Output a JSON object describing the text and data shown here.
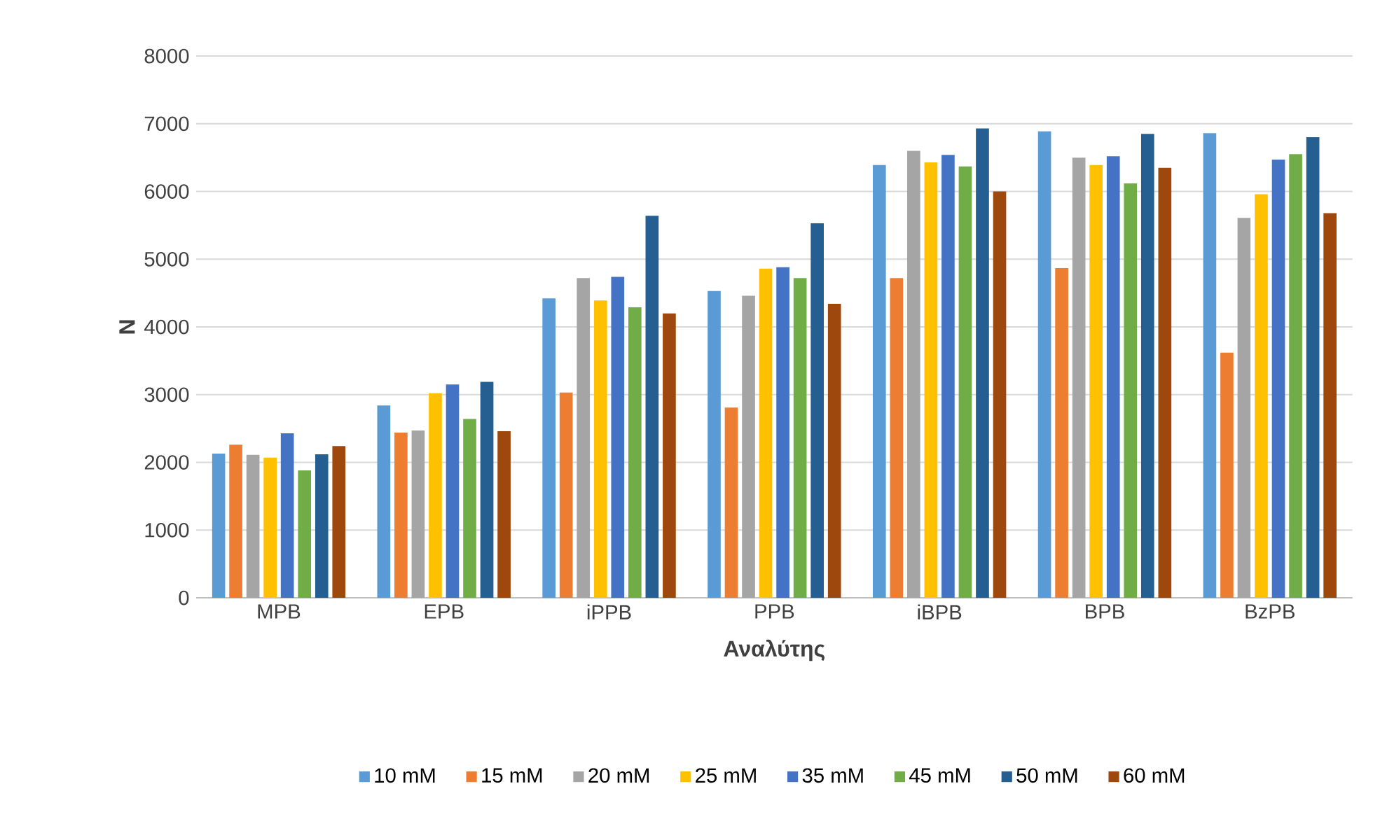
{
  "chart_data": {
    "type": "bar",
    "xlabel": "Αναλύτης",
    "ylabel": "N",
    "categories": [
      "MPB",
      "EPB",
      "iPPB",
      "PPB",
      "iBPB",
      "BPB",
      "BzPB"
    ],
    "series": [
      {
        "name": "10 mM",
        "color": "#5b9bd5",
        "values": [
          2130,
          2840,
          4420,
          4530,
          6390,
          6890,
          6860
        ]
      },
      {
        "name": "15 mM",
        "color": "#ed7d31",
        "values": [
          2260,
          2440,
          3030,
          2810,
          4720,
          4870,
          3620
        ]
      },
      {
        "name": "20 mM",
        "color": "#a5a5a5",
        "values": [
          2110,
          2470,
          4720,
          4460,
          6600,
          6500,
          5610
        ]
      },
      {
        "name": "25 mM",
        "color": "#ffc000",
        "values": [
          2070,
          3020,
          4390,
          4860,
          6430,
          6390,
          5960
        ]
      },
      {
        "name": "35 mM",
        "color": "#4472c4",
        "values": [
          2430,
          3150,
          4740,
          4880,
          6540,
          6520,
          6470
        ]
      },
      {
        "name": "45 mM",
        "color": "#70ad47",
        "values": [
          1880,
          2640,
          4290,
          4720,
          6370,
          6120,
          6550
        ]
      },
      {
        "name": "50 mM",
        "color": "#255e91",
        "values": [
          2120,
          3190,
          5640,
          5530,
          6930,
          6850,
          6800
        ]
      },
      {
        "name": "60 mM",
        "color": "#9e480e",
        "values": [
          2240,
          2460,
          4200,
          4340,
          6000,
          6350,
          5680
        ]
      }
    ],
    "ylim": [
      0,
      8000
    ],
    "yticks": [
      0,
      1000,
      2000,
      3000,
      4000,
      5000,
      6000,
      7000,
      8000
    ],
    "grid": "y",
    "legend": "bottom"
  }
}
